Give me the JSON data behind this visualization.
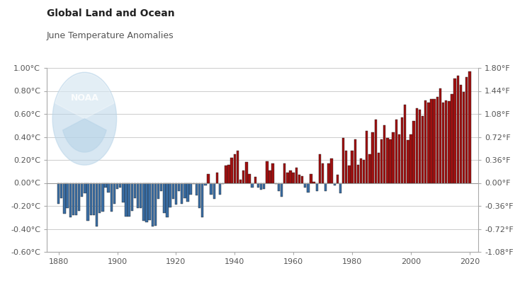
{
  "title": "Global Land and Ocean",
  "subtitle": "June Temperature Anomalies",
  "years": [
    1880,
    1881,
    1882,
    1883,
    1884,
    1885,
    1886,
    1887,
    1888,
    1889,
    1890,
    1891,
    1892,
    1893,
    1894,
    1895,
    1896,
    1897,
    1898,
    1899,
    1900,
    1901,
    1902,
    1903,
    1904,
    1905,
    1906,
    1907,
    1908,
    1909,
    1910,
    1911,
    1912,
    1913,
    1914,
    1915,
    1916,
    1917,
    1918,
    1919,
    1920,
    1921,
    1922,
    1923,
    1924,
    1925,
    1926,
    1927,
    1928,
    1929,
    1930,
    1931,
    1932,
    1933,
    1934,
    1935,
    1936,
    1937,
    1938,
    1939,
    1940,
    1941,
    1942,
    1943,
    1944,
    1945,
    1946,
    1947,
    1948,
    1949,
    1950,
    1951,
    1952,
    1953,
    1954,
    1955,
    1956,
    1957,
    1958,
    1959,
    1960,
    1961,
    1962,
    1963,
    1964,
    1965,
    1966,
    1967,
    1968,
    1969,
    1970,
    1971,
    1972,
    1973,
    1974,
    1975,
    1976,
    1977,
    1978,
    1979,
    1980,
    1981,
    1982,
    1983,
    1984,
    1985,
    1986,
    1987,
    1988,
    1989,
    1990,
    1991,
    1992,
    1993,
    1994,
    1995,
    1996,
    1997,
    1998,
    1999,
    2000,
    2001,
    2002,
    2003,
    2004,
    2005,
    2006,
    2007,
    2008,
    2009,
    2010,
    2011,
    2012,
    2013,
    2014,
    2015,
    2016,
    2017,
    2018,
    2019,
    2020
  ],
  "anomalies": [
    -0.18,
    -0.13,
    -0.27,
    -0.22,
    -0.3,
    -0.28,
    -0.28,
    -0.24,
    -0.12,
    -0.09,
    -0.33,
    -0.28,
    -0.28,
    -0.38,
    -0.26,
    -0.25,
    -0.04,
    -0.08,
    -0.25,
    -0.18,
    -0.05,
    -0.04,
    -0.17,
    -0.29,
    -0.29,
    -0.24,
    -0.13,
    -0.22,
    -0.22,
    -0.33,
    -0.34,
    -0.32,
    -0.38,
    -0.37,
    -0.14,
    -0.07,
    -0.26,
    -0.3,
    -0.21,
    -0.14,
    -0.19,
    -0.07,
    -0.18,
    -0.13,
    -0.16,
    -0.1,
    -0.01,
    -0.11,
    -0.22,
    -0.3,
    -0.02,
    0.08,
    -0.1,
    -0.14,
    0.09,
    -0.1,
    -0.01,
    0.15,
    0.16,
    0.22,
    0.25,
    0.28,
    0.03,
    0.11,
    0.18,
    0.08,
    -0.04,
    0.05,
    -0.04,
    -0.06,
    -0.05,
    0.19,
    0.11,
    0.17,
    -0.01,
    -0.07,
    -0.12,
    0.17,
    0.09,
    0.11,
    0.09,
    0.13,
    0.07,
    0.06,
    -0.04,
    -0.08,
    0.08,
    0.01,
    -0.07,
    0.25,
    0.17,
    -0.07,
    0.17,
    0.21,
    -0.02,
    0.07,
    -0.09,
    0.39,
    0.28,
    0.15,
    0.28,
    0.38,
    0.16,
    0.21,
    0.2,
    0.45,
    0.25,
    0.44,
    0.55,
    0.26,
    0.38,
    0.5,
    0.39,
    0.38,
    0.44,
    0.55,
    0.42,
    0.57,
    0.68,
    0.37,
    0.42,
    0.54,
    0.65,
    0.64,
    0.58,
    0.72,
    0.7,
    0.73,
    0.73,
    0.75,
    0.82,
    0.7,
    0.72,
    0.71,
    0.77,
    0.91,
    0.93,
    0.85,
    0.79,
    0.92,
    0.97
  ],
  "pos_color": "#a01010",
  "neg_color": "#3a6ea5",
  "bar_edge_color": "#222222",
  "zero_line_color": "#999999",
  "grid_color": "#cccccc",
  "bg_color": "#ffffff",
  "title_color": "#222222",
  "subtitle_color": "#555555",
  "tick_color": "#555555",
  "ylim": [
    -0.6,
    1.0
  ],
  "right_tick_vals": [
    -0.6,
    -0.4,
    -0.2,
    0.0,
    0.2,
    0.4,
    0.6,
    0.8,
    1.0
  ],
  "right_tick_labels": [
    "-1.08°F",
    "-0.72°F",
    "-0.36°F",
    "0.00°F",
    "0.36°F",
    "0.72°F",
    "1.08°F",
    "1.44°F",
    "1.80°F"
  ],
  "left_tick_vals": [
    -0.6,
    -0.4,
    -0.2,
    0.0,
    0.2,
    0.4,
    0.6,
    0.8,
    1.0
  ],
  "left_tick_labels": [
    "-0.60°C",
    "-0.40°C",
    "-0.20°C",
    "0.00°C",
    "0.20°C",
    "0.40°C",
    "0.60°C",
    "0.80°C",
    "1.00°C"
  ],
  "xticks": [
    1880,
    1900,
    1920,
    1940,
    1960,
    1980,
    2000,
    2020
  ],
  "xlim": [
    1876,
    2023
  ],
  "logo_color": "#b8d4e8",
  "logo_alpha": 0.55
}
